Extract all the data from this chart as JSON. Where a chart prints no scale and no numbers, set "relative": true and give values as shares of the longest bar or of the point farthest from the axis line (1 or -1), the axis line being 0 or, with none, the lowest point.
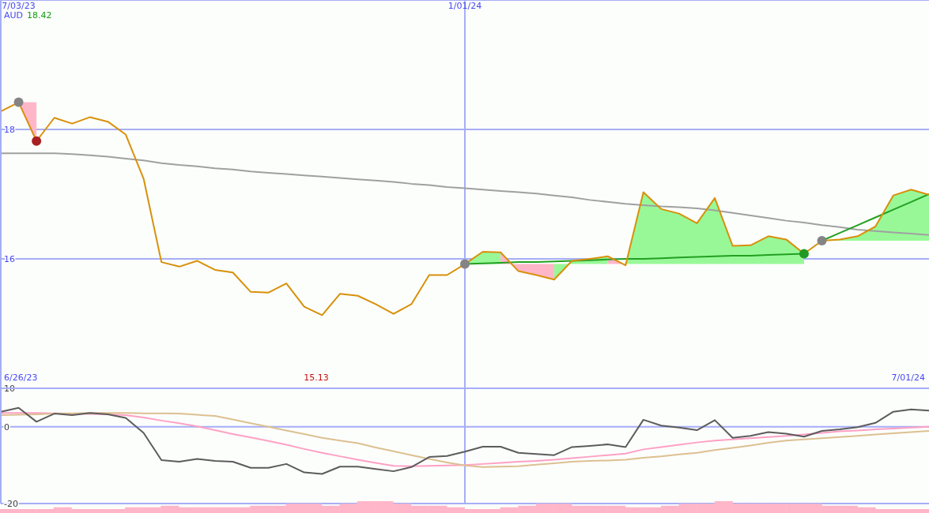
{
  "chart_data": [
    {
      "type": "line",
      "ylabel": "AUD",
      "categories": [
        null,
        "7/03/23",
        null,
        null,
        null,
        null,
        null,
        null,
        null,
        null,
        null,
        null,
        null,
        null,
        null,
        null,
        null,
        null,
        null,
        null,
        null,
        null,
        null,
        null,
        null,
        null,
        "1/01/24",
        null,
        null,
        null,
        null,
        null,
        null,
        null,
        null,
        null,
        null,
        null,
        null,
        null,
        null,
        null,
        null,
        null,
        null,
        null,
        null,
        null,
        null,
        null,
        null,
        null,
        null
      ],
      "ylim": [
        14,
        20
      ],
      "yticks": [
        16,
        18
      ],
      "grid": "y",
      "ref_lines": [
        {
          "axis": "x",
          "value": "1/01/24",
          "color": "#a6aef6"
        }
      ],
      "annotations": [
        "18.42",
        "6/26/23",
        "15.13",
        "7/01/24"
      ],
      "series": [
        {
          "type": "area",
          "color": "#ffb6c8",
          "values": [
            null,
            null,
            null,
            null,
            null,
            null,
            null,
            null,
            null,
            null,
            null,
            null,
            null,
            null,
            null,
            null,
            null,
            null,
            null,
            null,
            null,
            null,
            null,
            null,
            null,
            null,
            null,
            null,
            null,
            null,
            null,
            null,
            null,
            null,
            null,
            null,
            null,
            null,
            null,
            null,
            null,
            null,
            null,
            null,
            null,
            null,
            null,
            null,
            null,
            null,
            null,
            null,
            null
          ],
          "lower": [
            null,
            18.42,
            17.82,
            null,
            null,
            null,
            null,
            null,
            null,
            null,
            null,
            null,
            null,
            null,
            null,
            null,
            null,
            null,
            null,
            null,
            null,
            null,
            null,
            null,
            null,
            null,
            null,
            null,
            null,
            null,
            null,
            null,
            null,
            null,
            null,
            null,
            null,
            null,
            null,
            null,
            null,
            null,
            null,
            null,
            null,
            null,
            null,
            null,
            null,
            null,
            null,
            null,
            null
          ],
          "upper": [
            null,
            18.42,
            18.42,
            null,
            null,
            null,
            null,
            null,
            null,
            null,
            null,
            null,
            null,
            null,
            null,
            null,
            null,
            null,
            null,
            null,
            null,
            null,
            null,
            null,
            null,
            null,
            null,
            null,
            null,
            null,
            null,
            null,
            null,
            null,
            null,
            null,
            null,
            null,
            null,
            null,
            null,
            null,
            null,
            null,
            null,
            null,
            null,
            null,
            null,
            null,
            null,
            null,
            null
          ]
        },
        {
          "type": "area",
          "color": "#98f898",
          "values": [
            null,
            null,
            null,
            null,
            null,
            null,
            null,
            null,
            null,
            null,
            null,
            null,
            null,
            null,
            null,
            null,
            null,
            null,
            null,
            null,
            null,
            null,
            null,
            null,
            null,
            null,
            null,
            null,
            null,
            null,
            null,
            null,
            null,
            null,
            null,
            null,
            null,
            null,
            null,
            null,
            null,
            null,
            null,
            null,
            null,
            null,
            null,
            null,
            null,
            null,
            null,
            null,
            null
          ],
          "lower": [
            null,
            null,
            null,
            null,
            null,
            null,
            null,
            null,
            null,
            null,
            null,
            null,
            null,
            null,
            null,
            null,
            null,
            null,
            null,
            null,
            null,
            null,
            null,
            null,
            null,
            null,
            15.92,
            15.92,
            15.92,
            null,
            null,
            null,
            null,
            null,
            null,
            null,
            null,
            null,
            null,
            null,
            null,
            null,
            null,
            null,
            null,
            null,
            null,
            null,
            null,
            null,
            null,
            null,
            null
          ],
          "upper": [
            null,
            null,
            null,
            null,
            null,
            null,
            null,
            null,
            null,
            null,
            null,
            null,
            null,
            null,
            null,
            null,
            null,
            null,
            null,
            null,
            null,
            null,
            null,
            null,
            null,
            null,
            15.92,
            16.11,
            16.1,
            null,
            null,
            null,
            null,
            null,
            null,
            null,
            null,
            null,
            null,
            null,
            null,
            null,
            null,
            null,
            null,
            null,
            null,
            null,
            null,
            null,
            null,
            null,
            null
          ]
        },
        {
          "type": "area",
          "color": "#ffb6c8",
          "values": [
            null,
            null,
            null,
            null,
            null,
            null,
            null,
            null,
            null,
            null,
            null,
            null,
            null,
            null,
            null,
            null,
            null,
            null,
            null,
            null,
            null,
            null,
            null,
            null,
            null,
            null,
            null,
            null,
            null,
            null,
            null,
            null,
            null,
            null,
            null,
            null,
            null,
            null,
            null,
            null,
            null,
            null,
            null,
            null,
            null,
            null,
            null,
            null,
            null,
            null,
            null,
            null,
            null
          ],
          "lower": [
            null,
            null,
            null,
            null,
            null,
            null,
            null,
            null,
            null,
            null,
            null,
            null,
            null,
            null,
            null,
            null,
            null,
            null,
            null,
            null,
            null,
            null,
            null,
            null,
            null,
            null,
            null,
            null,
            16.1,
            15.81,
            15.75,
            15.68,
            null,
            null,
            null,
            null,
            null,
            null,
            null,
            null,
            null,
            null,
            null,
            null,
            null,
            null,
            null,
            null,
            null,
            null,
            null,
            null,
            null
          ],
          "upper": [
            null,
            null,
            null,
            null,
            null,
            null,
            null,
            null,
            null,
            null,
            null,
            null,
            null,
            null,
            null,
            null,
            null,
            null,
            null,
            null,
            null,
            null,
            null,
            null,
            null,
            null,
            null,
            null,
            15.92,
            15.92,
            15.92,
            15.92,
            null,
            null,
            null,
            null,
            null,
            null,
            null,
            null,
            null,
            null,
            null,
            null,
            null,
            null,
            null,
            null,
            null,
            null,
            null,
            null,
            null
          ]
        },
        {
          "type": "area",
          "color": "#98f898",
          "values": [
            null,
            null,
            null,
            null,
            null,
            null,
            null,
            null,
            null,
            null,
            null,
            null,
            null,
            null,
            null,
            null,
            null,
            null,
            null,
            null,
            null,
            null,
            null,
            null,
            null,
            null,
            null,
            null,
            null,
            null,
            null,
            null,
            null,
            null,
            null,
            null,
            null,
            null,
            null,
            null,
            null,
            null,
            null,
            null,
            null,
            null,
            null,
            null,
            null,
            null,
            null,
            null,
            null
          ],
          "lower": [
            null,
            null,
            null,
            null,
            null,
            null,
            null,
            null,
            null,
            null,
            null,
            null,
            null,
            null,
            null,
            null,
            null,
            null,
            null,
            null,
            null,
            null,
            null,
            null,
            null,
            null,
            null,
            null,
            null,
            null,
            null,
            15.92,
            15.92,
            15.92,
            15.92,
            null,
            null,
            null,
            null,
            null,
            null,
            null,
            null,
            null,
            null,
            null,
            null,
            null,
            null,
            null,
            null,
            null,
            null
          ],
          "upper": [
            null,
            null,
            null,
            null,
            null,
            null,
            null,
            null,
            null,
            null,
            null,
            null,
            null,
            null,
            null,
            null,
            null,
            null,
            null,
            null,
            null,
            null,
            null,
            null,
            null,
            null,
            null,
            null,
            null,
            null,
            null,
            15.68,
            15.97,
            16.0,
            16.04,
            null,
            null,
            null,
            null,
            null,
            null,
            null,
            null,
            null,
            null,
            null,
            null,
            null,
            null,
            null,
            null,
            null,
            null
          ]
        },
        {
          "type": "area",
          "color": "#ffb6c8",
          "values": [
            null,
            null,
            null,
            null,
            null,
            null,
            null,
            null,
            null,
            null,
            null,
            null,
            null,
            null,
            null,
            null,
            null,
            null,
            null,
            null,
            null,
            null,
            null,
            null,
            null,
            null,
            null,
            null,
            null,
            null,
            null,
            null,
            null,
            null,
            null,
            null,
            null,
            null,
            null,
            null,
            null,
            null,
            null,
            null,
            null,
            null,
            null,
            null,
            null,
            null,
            null,
            null,
            null
          ],
          "lower": [
            null,
            null,
            null,
            null,
            null,
            null,
            null,
            null,
            null,
            null,
            null,
            null,
            null,
            null,
            null,
            null,
            null,
            null,
            null,
            null,
            null,
            null,
            null,
            null,
            null,
            null,
            null,
            null,
            null,
            null,
            null,
            null,
            null,
            null,
            16.04,
            15.9,
            null,
            null,
            null,
            null,
            null,
            null,
            null,
            null,
            null,
            null,
            null,
            null,
            null,
            null,
            null,
            null,
            null
          ],
          "upper": [
            null,
            null,
            null,
            null,
            null,
            null,
            null,
            null,
            null,
            null,
            null,
            null,
            null,
            null,
            null,
            null,
            null,
            null,
            null,
            null,
            null,
            null,
            null,
            null,
            null,
            null,
            null,
            null,
            null,
            null,
            null,
            null,
            null,
            null,
            15.92,
            15.92,
            null,
            null,
            null,
            null,
            null,
            null,
            null,
            null,
            null,
            null,
            null,
            null,
            null,
            null,
            null,
            null,
            null
          ]
        },
        {
          "type": "area",
          "color": "#98f898",
          "values": [
            null,
            null,
            null,
            null,
            null,
            null,
            null,
            null,
            null,
            null,
            null,
            null,
            null,
            null,
            null,
            null,
            null,
            null,
            null,
            null,
            null,
            null,
            null,
            null,
            null,
            null,
            null,
            null,
            null,
            null,
            null,
            null,
            null,
            null,
            null,
            null,
            null,
            null,
            null,
            null,
            null,
            null,
            null,
            null,
            null,
            null,
            null,
            null,
            null,
            null,
            null,
            null,
            null
          ],
          "lower": [
            null,
            null,
            null,
            null,
            null,
            null,
            null,
            null,
            null,
            null,
            null,
            null,
            null,
            null,
            null,
            null,
            null,
            null,
            null,
            null,
            null,
            null,
            null,
            null,
            null,
            null,
            null,
            null,
            null,
            null,
            null,
            null,
            null,
            null,
            null,
            15.92,
            15.92,
            15.92,
            15.92,
            15.92,
            15.92,
            15.92,
            15.92,
            15.92,
            15.92,
            15.92,
            null,
            null,
            null,
            null,
            null,
            null,
            null
          ],
          "upper": [
            null,
            null,
            null,
            null,
            null,
            null,
            null,
            null,
            null,
            null,
            null,
            null,
            null,
            null,
            null,
            null,
            null,
            null,
            null,
            null,
            null,
            null,
            null,
            null,
            null,
            null,
            null,
            null,
            null,
            null,
            null,
            null,
            null,
            null,
            null,
            15.9,
            17.03,
            16.77,
            16.7,
            16.55,
            16.94,
            16.2,
            16.21,
            16.35,
            16.3,
            16.08,
            null,
            null,
            null,
            null,
            null,
            null,
            null
          ]
        },
        {
          "type": "area",
          "color": "#98f898",
          "values": [
            null,
            null,
            null,
            null,
            null,
            null,
            null,
            null,
            null,
            null,
            null,
            null,
            null,
            null,
            null,
            null,
            null,
            null,
            null,
            null,
            null,
            null,
            null,
            null,
            null,
            null,
            null,
            null,
            null,
            null,
            null,
            null,
            null,
            null,
            null,
            null,
            null,
            null,
            null,
            null,
            null,
            null,
            null,
            null,
            null,
            null,
            null,
            null,
            null,
            null,
            null,
            null,
            null
          ],
          "lower": [
            null,
            null,
            null,
            null,
            null,
            null,
            null,
            null,
            null,
            null,
            null,
            null,
            null,
            null,
            null,
            null,
            null,
            null,
            null,
            null,
            null,
            null,
            null,
            null,
            null,
            null,
            null,
            null,
            null,
            null,
            null,
            null,
            null,
            null,
            null,
            null,
            null,
            null,
            null,
            null,
            null,
            null,
            null,
            null,
            null,
            null,
            16.28,
            16.28,
            16.28,
            16.28,
            16.28,
            16.28,
            16.28
          ],
          "upper": [
            null,
            null,
            null,
            null,
            null,
            null,
            null,
            null,
            null,
            null,
            null,
            null,
            null,
            null,
            null,
            null,
            null,
            null,
            null,
            null,
            null,
            null,
            null,
            null,
            null,
            null,
            null,
            null,
            null,
            null,
            null,
            null,
            null,
            null,
            null,
            null,
            null,
            null,
            null,
            null,
            null,
            null,
            null,
            null,
            null,
            null,
            16.28,
            16.3,
            16.35,
            16.5,
            16.98,
            17.07,
            16.99
          ]
        },
        {
          "type": "line",
          "color": "#a0a0a0",
          "values": [
            17.63,
            17.63,
            17.63,
            17.63,
            17.62,
            17.6,
            17.58,
            17.55,
            17.52,
            17.48,
            17.45,
            17.43,
            17.4,
            17.38,
            17.35,
            17.33,
            17.31,
            17.29,
            17.27,
            17.25,
            17.23,
            17.21,
            17.19,
            17.16,
            17.14,
            17.11,
            17.09,
            17.07,
            17.05,
            17.03,
            17.01,
            16.98,
            16.95,
            16.91,
            16.88,
            16.85,
            16.83,
            16.81,
            16.8,
            16.78,
            16.75,
            16.71,
            16.67,
            16.63,
            16.59,
            16.56,
            16.52,
            16.49,
            16.45,
            16.43,
            16.41,
            16.39,
            16.37
          ]
        },
        {
          "type": "line",
          "color": "#22a022",
          "values": [
            null,
            null,
            null,
            null,
            null,
            null,
            null,
            null,
            null,
            null,
            null,
            null,
            null,
            null,
            null,
            null,
            null,
            null,
            null,
            null,
            null,
            null,
            null,
            null,
            null,
            null,
            15.92,
            15.93,
            15.94,
            15.95,
            15.95,
            15.96,
            15.97,
            15.98,
            15.99,
            16.0,
            16.0,
            16.01,
            16.02,
            16.03,
            16.04,
            16.05,
            16.05,
            16.06,
            16.07,
            16.08,
            null,
            null,
            null,
            null,
            null,
            null,
            null
          ]
        },
        {
          "type": "line",
          "color": "#22a022",
          "values": [
            null,
            null,
            null,
            null,
            null,
            null,
            null,
            null,
            null,
            null,
            null,
            null,
            null,
            null,
            null,
            null,
            null,
            null,
            null,
            null,
            null,
            null,
            null,
            null,
            null,
            null,
            null,
            null,
            null,
            null,
            null,
            null,
            null,
            null,
            null,
            null,
            null,
            null,
            null,
            null,
            null,
            null,
            null,
            null,
            null,
            null,
            16.28,
            16.4,
            16.52,
            16.64,
            16.76,
            16.88,
            17.0
          ]
        },
        {
          "type": "line",
          "color": "#d8900a",
          "values": [
            18.28,
            18.42,
            17.82,
            18.18,
            18.09,
            18.19,
            18.12,
            17.92,
            17.24,
            15.95,
            15.88,
            15.97,
            15.83,
            15.79,
            15.49,
            15.48,
            15.62,
            15.26,
            15.13,
            15.46,
            15.43,
            15.3,
            15.15,
            15.3,
            15.75,
            15.75,
            15.92,
            16.11,
            16.1,
            15.81,
            15.75,
            15.68,
            15.97,
            16.0,
            16.04,
            15.9,
            17.03,
            16.77,
            16.7,
            16.55,
            16.94,
            16.2,
            16.21,
            16.35,
            16.3,
            16.08,
            16.28,
            16.3,
            16.35,
            16.5,
            16.98,
            17.07,
            16.99
          ]
        },
        {
          "type": "scatter",
          "color": "#848484",
          "marker": "circle",
          "values": [
            null,
            18.42,
            null,
            null,
            null,
            null,
            null,
            null,
            null,
            null,
            null,
            null,
            null,
            null,
            null,
            null,
            null,
            null,
            null,
            null,
            null,
            null,
            null,
            null,
            null,
            null,
            15.92,
            null,
            null,
            null,
            null,
            null,
            null,
            null,
            null,
            null,
            null,
            null,
            null,
            null,
            null,
            null,
            null,
            null,
            null,
            null,
            16.28,
            null,
            null,
            null,
            null,
            null,
            null
          ]
        },
        {
          "type": "scatter",
          "color": "#a82020",
          "marker": "circle",
          "values": [
            null,
            null,
            17.82,
            null,
            null,
            null,
            null,
            null,
            null,
            null,
            null,
            null,
            null,
            null,
            null,
            null,
            null,
            null,
            null,
            null,
            null,
            null,
            null,
            null,
            null,
            null,
            null,
            null,
            null,
            null,
            null,
            null,
            null,
            null,
            null,
            null,
            null,
            null,
            null,
            null,
            null,
            null,
            null,
            null,
            null,
            null,
            null,
            null,
            null,
            null,
            null,
            null,
            null
          ]
        },
        {
          "type": "scatter",
          "color": "#229922",
          "marker": "circle",
          "values": [
            null,
            null,
            null,
            null,
            null,
            null,
            null,
            null,
            null,
            null,
            null,
            null,
            null,
            null,
            null,
            null,
            null,
            null,
            null,
            null,
            null,
            null,
            null,
            null,
            null,
            null,
            null,
            null,
            null,
            null,
            null,
            null,
            null,
            null,
            null,
            null,
            null,
            null,
            null,
            null,
            null,
            null,
            null,
            null,
            null,
            16.08,
            null,
            null,
            null,
            null,
            null,
            null,
            null
          ]
        }
      ]
    },
    {
      "type": "line",
      "categories": [
        null,
        "7/03/23",
        null,
        null,
        null,
        null,
        null,
        null,
        null,
        null,
        null,
        null,
        null,
        null,
        null,
        null,
        null,
        null,
        null,
        null,
        null,
        null,
        null,
        null,
        null,
        null,
        "1/01/24",
        null,
        null,
        null,
        null,
        null,
        null,
        null,
        null,
        null,
        null,
        null,
        null,
        null,
        null,
        null,
        null,
        null,
        null,
        null,
        null,
        null,
        null,
        null,
        null,
        null,
        null
      ],
      "ylim": [
        -20,
        10
      ],
      "yticks": [
        10,
        0,
        -20
      ],
      "grid": "y",
      "tick_labels": "y",
      "ref_lines": [
        {
          "axis": "x",
          "value": "1/01/24",
          "color": "#a6aef6"
        }
      ],
      "series": [
        {
          "color": "#ffa0c4",
          "values": [
            3.6,
            3.6,
            3.6,
            3.5,
            3.4,
            3.3,
            3.2,
            3.0,
            2.4,
            1.6,
            0.9,
            0.1,
            -0.9,
            -1.9,
            -2.8,
            -3.7,
            -4.7,
            -5.8,
            -6.8,
            -7.7,
            -8.6,
            -9.4,
            -10.2,
            -10.3,
            -10.2,
            -10.1,
            -10.0,
            -9.7,
            -9.4,
            -9.1,
            -8.9,
            -8.6,
            -8.2,
            -7.8,
            -7.4,
            -7.0,
            -5.9,
            -5.3,
            -4.7,
            -4.1,
            -3.6,
            -3.3,
            -3.0,
            -2.7,
            -2.4,
            -2.0,
            -1.6,
            -1.2,
            -1.0,
            -0.7,
            -0.5,
            -0.2,
            0.0
          ]
        },
        {
          "color": "#dcc090",
          "values": [
            3.0,
            3.1,
            3.2,
            3.4,
            3.5,
            3.6,
            3.6,
            3.6,
            3.5,
            3.5,
            3.4,
            3.1,
            2.8,
            1.9,
            0.9,
            0.0,
            -1.0,
            -1.9,
            -2.9,
            -3.6,
            -4.3,
            -5.4,
            -6.4,
            -7.4,
            -8.4,
            -9.3,
            -10.1,
            -10.5,
            -10.4,
            -10.3,
            -9.9,
            -9.5,
            -9.1,
            -8.9,
            -8.8,
            -8.6,
            -8.1,
            -7.7,
            -7.2,
            -6.8,
            -6.1,
            -5.5,
            -4.9,
            -4.2,
            -3.6,
            -3.3,
            -3.0,
            -2.7,
            -2.4,
            -2.0,
            -1.7,
            -1.4,
            -1.1
          ]
        },
        {
          "color": "#5c5c5c",
          "values": [
            3.9,
            4.9,
            1.3,
            3.4,
            3.0,
            3.6,
            3.2,
            2.3,
            -1.6,
            -8.7,
            -9.1,
            -8.4,
            -8.9,
            -9.1,
            -10.7,
            -10.7,
            -9.7,
            -11.9,
            -12.3,
            -10.4,
            -10.4,
            -11.0,
            -11.6,
            -10.5,
            -7.9,
            -7.6,
            -6.5,
            -5.2,
            -5.2,
            -6.8,
            -7.1,
            -7.4,
            -5.3,
            -5.0,
            -4.6,
            -5.3,
            1.8,
            0.3,
            -0.2,
            -0.9,
            1.7,
            -2.9,
            -2.4,
            -1.4,
            -1.8,
            -2.6,
            -1.1,
            -0.7,
            -0.1,
            1.0,
            3.9,
            4.5,
            4.2
          ]
        }
      ]
    },
    {
      "type": "bar",
      "relative": true,
      "color": "#ffb6c8",
      "categories": [
        null,
        null,
        null,
        null,
        null,
        null,
        null,
        null,
        null,
        null,
        null,
        null,
        null,
        null,
        null,
        null,
        null,
        null,
        null,
        null,
        null,
        null,
        null,
        null,
        null,
        null,
        null,
        null,
        null,
        null,
        null,
        null,
        null,
        null,
        null,
        null,
        null,
        null,
        null,
        null,
        null,
        null,
        null,
        null,
        null,
        null,
        null,
        null,
        null,
        null,
        null,
        null
      ],
      "values": [
        0.33,
        0.33,
        0.33,
        0.49,
        0.33,
        0.33,
        0.33,
        0.49,
        0.49,
        0.62,
        0.49,
        0.49,
        0.49,
        0.49,
        0.62,
        0.62,
        0.78,
        0.78,
        0.62,
        0.78,
        1,
        1,
        0.78,
        0.62,
        0.62,
        0.49,
        0.33,
        0.33,
        0.49,
        0.62,
        0.78,
        0.78,
        0.62,
        0.62,
        0.62,
        0.49,
        0.49,
        0.62,
        0.78,
        0.78,
        1,
        0.78,
        0.78,
        0.78,
        0.78,
        0.78,
        0.62,
        0.62,
        0.49,
        0.33,
        0.33,
        0.33
      ]
    }
  ]
}
